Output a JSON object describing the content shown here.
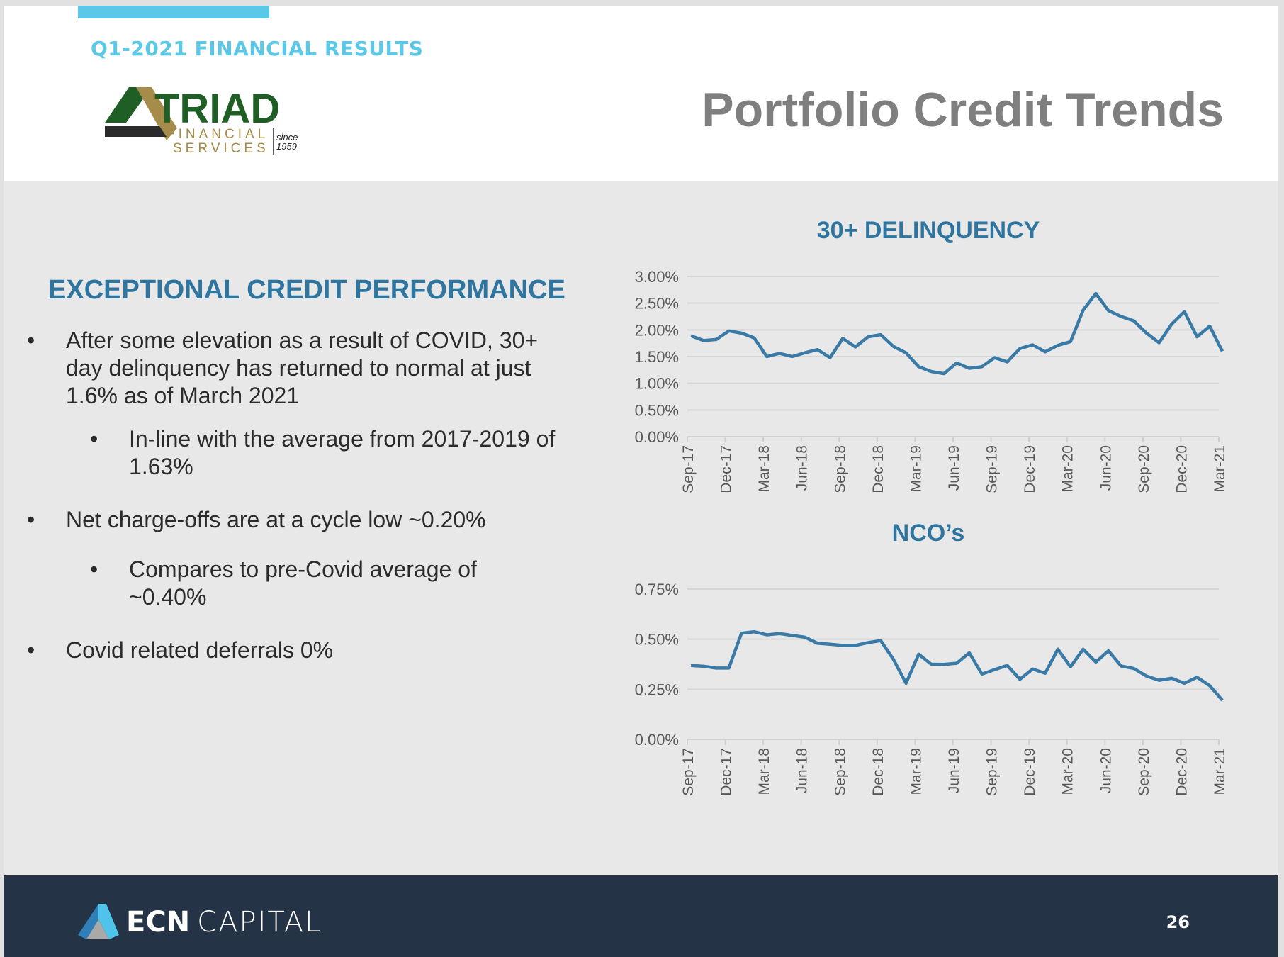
{
  "header": {
    "kicker": "Q1-2021 FINANCIAL RESULTS",
    "title": "Portfolio Credit Trends",
    "logo": {
      "name": "TRIAD",
      "line2": "FINANCIAL",
      "line3": "SERVICES",
      "since": "since",
      "year": "1959"
    }
  },
  "left": {
    "heading": "EXCEPTIONAL CREDIT PERFORMANCE",
    "bullets": [
      {
        "text": "After some elevation as a result of COVID, 30+ day delinquency has returned to normal at just 1.6% as of March 2021"
      },
      {
        "text": "In-line with the average from 2017-2019 of 1.63%"
      },
      {
        "text": "Net charge-offs are at a cycle low ~0.20%"
      },
      {
        "text": "Compares to pre-Covid average of ~0.40%"
      },
      {
        "text": "Covid related deferrals 0%"
      }
    ],
    "bullet_char": "•"
  },
  "footer": {
    "brand_bold": "ECN",
    "brand_light": "CAPITAL",
    "page": "26"
  },
  "chart_data": [
    {
      "type": "line",
      "title": "30+ DELINQUENCY",
      "ylim": [
        0,
        3.0
      ],
      "yticks": [
        "0.00%",
        "0.50%",
        "1.00%",
        "1.50%",
        "2.00%",
        "2.50%",
        "3.00%"
      ],
      "color": "#3a7aa6",
      "xticklabels": [
        "Sep-17",
        "Dec-17",
        "Mar-18",
        "Jun-18",
        "Sep-18",
        "Dec-18",
        "Mar-19",
        "Jun-19",
        "Sep-19",
        "Dec-19",
        "Mar-20",
        "Jun-20",
        "Sep-20",
        "Dec-20",
        "Mar-21"
      ],
      "x_start": "Sep-17",
      "x_end": "Mar-21",
      "frequency": "monthly",
      "values": [
        1.89,
        1.8,
        1.82,
        1.98,
        1.94,
        1.85,
        1.5,
        1.56,
        1.5,
        1.57,
        1.63,
        1.48,
        1.84,
        1.68,
        1.87,
        1.91,
        1.69,
        1.57,
        1.31,
        1.22,
        1.18,
        1.38,
        1.28,
        1.31,
        1.48,
        1.4,
        1.65,
        1.72,
        1.59,
        1.71,
        1.78,
        2.37,
        2.68,
        2.36,
        2.25,
        2.17,
        1.94,
        1.76,
        2.11,
        2.34,
        1.87,
        2.07,
        1.6
      ]
    },
    {
      "type": "line",
      "title": "NCO’s",
      "ylim": [
        0,
        0.75
      ],
      "yticks": [
        "0.00%",
        "0.25%",
        "0.50%",
        "0.75%"
      ],
      "color": "#3a7aa6",
      "xticklabels": [
        "Sep-17",
        "Dec-17",
        "Mar-18",
        "Jun-18",
        "Sep-18",
        "Dec-18",
        "Mar-19",
        "Jun-19",
        "Sep-19",
        "Dec-19",
        "Mar-20",
        "Jun-20",
        "Sep-20",
        "Dec-20",
        "Mar-21"
      ],
      "x_start": "Sep-17",
      "x_end": "Mar-21",
      "frequency": "monthly",
      "values": [
        0.369,
        0.365,
        0.356,
        0.356,
        0.53,
        0.537,
        0.522,
        0.528,
        0.519,
        0.51,
        0.48,
        0.475,
        0.469,
        0.469,
        0.483,
        0.493,
        0.4,
        0.28,
        0.425,
        0.375,
        0.374,
        0.38,
        0.432,
        0.326,
        0.348,
        0.369,
        0.3,
        0.351,
        0.33,
        0.45,
        0.362,
        0.45,
        0.386,
        0.442,
        0.366,
        0.354,
        0.316,
        0.295,
        0.305,
        0.28,
        0.31,
        0.268,
        0.195
      ]
    }
  ]
}
